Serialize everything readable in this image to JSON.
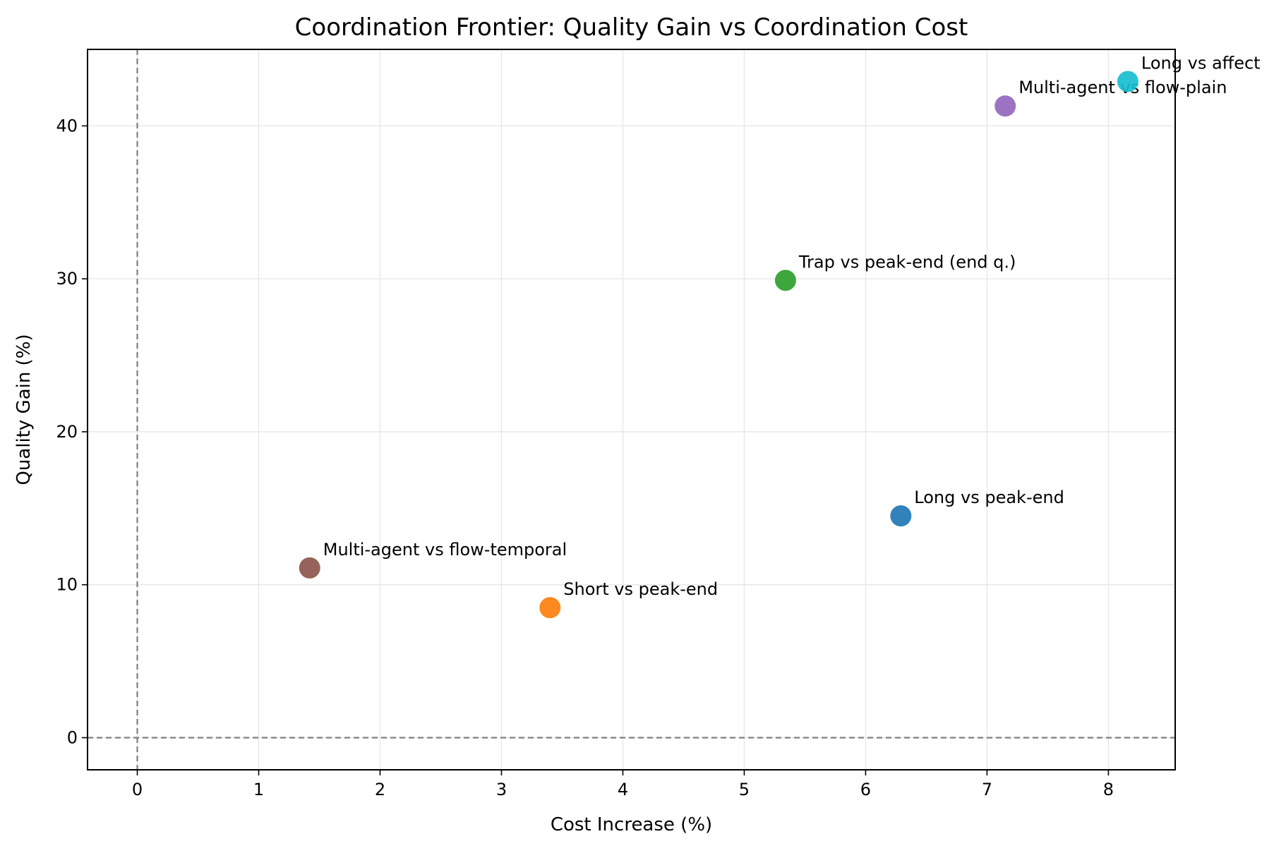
{
  "chart_data": {
    "type": "scatter",
    "title": "Coordination Frontier: Quality Gain vs Coordination Cost",
    "xlabel": "Cost Increase (%)",
    "ylabel": "Quality Gain (%)",
    "xlim": [
      -0.41,
      8.55
    ],
    "ylim": [
      -2.1,
      45.0
    ],
    "xticks": [
      0,
      1,
      2,
      3,
      4,
      5,
      6,
      7,
      8
    ],
    "yticks": [
      0,
      10,
      20,
      30,
      40
    ],
    "grid": true,
    "reference_lines": {
      "x": 0,
      "y": 0
    },
    "points": [
      {
        "label": "Long vs peak-end",
        "x": 6.29,
        "y": 14.5,
        "color": "#1f77b4"
      },
      {
        "label": "Short vs peak-end",
        "x": 3.4,
        "y": 8.5,
        "color": "#ff7f0e"
      },
      {
        "label": "Trap vs peak-end (end q.)",
        "x": 5.34,
        "y": 29.9,
        "color": "#2ca02c"
      },
      {
        "label": "Multi-agent vs flow-plain",
        "x": 7.15,
        "y": 41.3,
        "color": "#9467bd"
      },
      {
        "label": "Multi-agent vs flow-temporal",
        "x": 1.42,
        "y": 11.1,
        "color": "#8c564b"
      },
      {
        "label": "Long vs affect",
        "x": 8.16,
        "y": 42.9,
        "color": "#17becf"
      }
    ]
  }
}
